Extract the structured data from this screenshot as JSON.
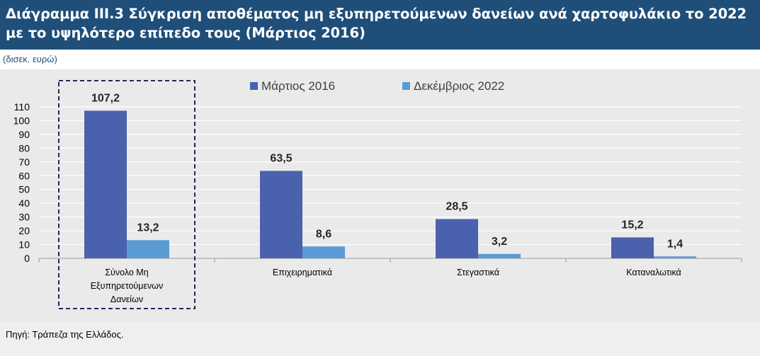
{
  "title": "Διάγραμμα ΙΙΙ.3 Σύγκριση αποθέματος μη εξυπηρετούμενων δανείων ανά χαρτοφυλάκιο το 2022 με το υψηλότερο επίπεδο τους (Μάρτιος 2016)",
  "unit_label": "(δισεκ. ευρώ)",
  "source": "Πηγή: Τράπεζα της Ελλάδος.",
  "chart_data": {
    "type": "bar",
    "categories": [
      [
        "Σύνολο Μη",
        "Εξυπηρετούμενων",
        "Δανείων"
      ],
      [
        "Επιχειρηματικά"
      ],
      [
        "Στεγαστικά"
      ],
      [
        "Καταναλωτικά"
      ]
    ],
    "series": [
      {
        "name": "Μάρτιος 2016",
        "values": [
          107.2,
          63.5,
          28.5,
          15.2
        ],
        "labels": [
          "107,2",
          "63,5",
          "28,5",
          "15,2"
        ],
        "color": "#4a62ad"
      },
      {
        "name": "Δεκέμβριος 2022",
        "values": [
          13.2,
          8.6,
          3.2,
          1.4
        ],
        "labels": [
          "13,2",
          "8,6",
          "3,2",
          "1,4"
        ],
        "color": "#5b9bd5"
      }
    ],
    "ylim": [
      0,
      110
    ],
    "yticks": [
      "0",
      "10",
      "20",
      "30",
      "40",
      "50",
      "60",
      "70",
      "80",
      "90",
      "100",
      "110"
    ],
    "grid": true,
    "legend": "top-center",
    "highlighted_category": 0
  }
}
